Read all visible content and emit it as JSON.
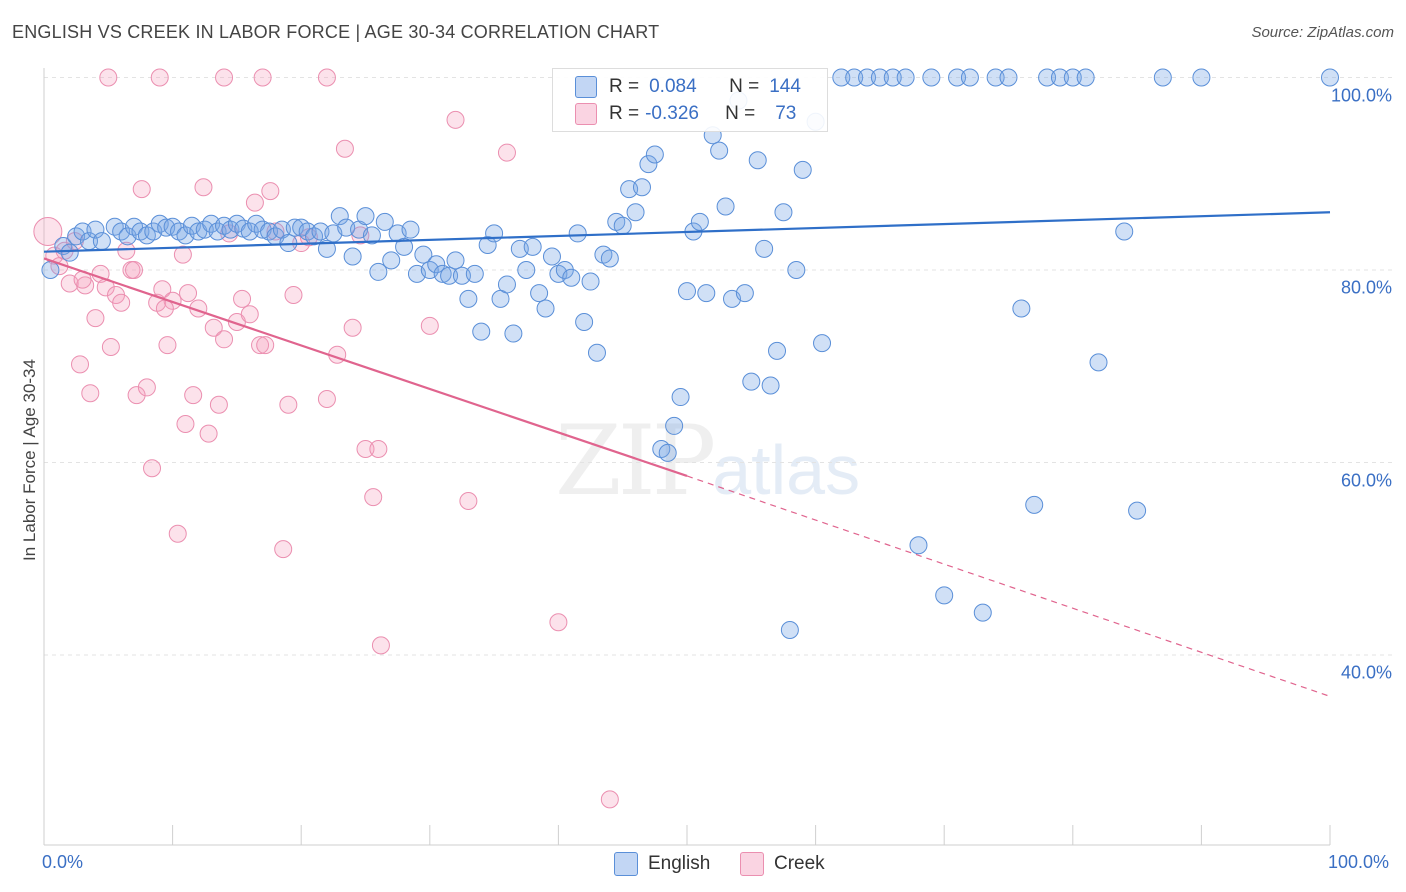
{
  "header": {
    "title": "ENGLISH VS CREEK IN LABOR FORCE | AGE 30-34 CORRELATION CHART",
    "source": "Source: ZipAtlas.com"
  },
  "watermark": {
    "zip": "ZIP",
    "atlas": "atlas"
  },
  "legend": {
    "english": {
      "r_label": "R =",
      "r_value": "0.084",
      "n_label": "N =",
      "n_value": "144",
      "color": "#6fa0e0"
    },
    "creek": {
      "r_label": "R =",
      "r_value": "-0.326",
      "n_label": "N =",
      "n_value": "73",
      "color": "#f095b4"
    }
  },
  "bottom_legend": {
    "english": "English",
    "creek": "Creek"
  },
  "colors": {
    "english_fill": "rgba(120,165,230,0.35)",
    "english_stroke": "#5a8fd8",
    "english_line": "#2f6fc8",
    "creek_fill": "rgba(245,160,190,0.30)",
    "creek_stroke": "#eb8fb0",
    "creek_line": "#e0648e",
    "grid": "#e3e3e3",
    "tick_label": "#3a6fc4"
  },
  "chart_data": {
    "type": "scatter",
    "title": "ENGLISH VS CREEK IN LABOR FORCE | AGE 30-34 CORRELATION CHART",
    "xlabel": "",
    "ylabel": "In Labor Force | Age 30-34",
    "xlim": [
      0,
      100
    ],
    "ylim": [
      20,
      102
    ],
    "x_tick_labels": [
      "0.0%",
      "100.0%"
    ],
    "y_ticks": [
      40,
      60,
      80,
      100
    ],
    "y_tick_labels": [
      "40.0%",
      "60.0%",
      "80.0%",
      "100.0%"
    ],
    "grid": true,
    "series": [
      {
        "name": "English",
        "r": 0.084,
        "n": 144,
        "trend": {
          "x": [
            0,
            100
          ],
          "y": [
            81.9,
            86.0
          ],
          "dashed_from": null
        },
        "points": [
          [
            0.5,
            80.0
          ],
          [
            1.5,
            82.5
          ],
          [
            2.0,
            81.8
          ],
          [
            2.5,
            83.5
          ],
          [
            3.0,
            84.0
          ],
          [
            3.5,
            83.0
          ],
          [
            4.0,
            84.2
          ],
          [
            4.5,
            83.0
          ],
          [
            5.5,
            84.5
          ],
          [
            6.0,
            84.0
          ],
          [
            6.5,
            83.5
          ],
          [
            7.0,
            84.5
          ],
          [
            7.5,
            84.0
          ],
          [
            8.0,
            83.6
          ],
          [
            8.5,
            84.0
          ],
          [
            9.0,
            84.8
          ],
          [
            9.5,
            84.4
          ],
          [
            10.0,
            84.5
          ],
          [
            10.5,
            84.0
          ],
          [
            11.0,
            83.6
          ],
          [
            11.5,
            84.6
          ],
          [
            12.0,
            84.0
          ],
          [
            12.5,
            84.2
          ],
          [
            13.0,
            84.8
          ],
          [
            13.5,
            84.0
          ],
          [
            14.0,
            84.6
          ],
          [
            14.5,
            84.2
          ],
          [
            15.0,
            84.8
          ],
          [
            15.5,
            84.3
          ],
          [
            16.0,
            84.0
          ],
          [
            16.5,
            84.8
          ],
          [
            17.0,
            84.2
          ],
          [
            17.5,
            84.0
          ],
          [
            18.0,
            83.5
          ],
          [
            18.5,
            84.2
          ],
          [
            19.0,
            82.8
          ],
          [
            19.5,
            84.4
          ],
          [
            20.0,
            84.4
          ],
          [
            20.5,
            84.0
          ],
          [
            21.0,
            83.5
          ],
          [
            21.5,
            84.0
          ],
          [
            22.0,
            82.2
          ],
          [
            22.5,
            83.8
          ],
          [
            23.0,
            85.6
          ],
          [
            23.5,
            84.4
          ],
          [
            24.0,
            81.4
          ],
          [
            24.5,
            84.2
          ],
          [
            25.0,
            85.6
          ],
          [
            25.5,
            83.6
          ],
          [
            26.0,
            79.8
          ],
          [
            26.5,
            85.0
          ],
          [
            27.0,
            81.0
          ],
          [
            27.5,
            83.8
          ],
          [
            28.0,
            82.4
          ],
          [
            28.5,
            84.2
          ],
          [
            29.0,
            79.6
          ],
          [
            29.5,
            81.6
          ],
          [
            30.0,
            80.0
          ],
          [
            30.5,
            80.6
          ],
          [
            31.0,
            79.6
          ],
          [
            31.5,
            79.4
          ],
          [
            32.0,
            81.0
          ],
          [
            32.5,
            79.4
          ],
          [
            33.0,
            77.0
          ],
          [
            33.5,
            79.6
          ],
          [
            34.0,
            73.6
          ],
          [
            34.5,
            82.6
          ],
          [
            35.0,
            83.8
          ],
          [
            35.5,
            77.0
          ],
          [
            36.0,
            78.5
          ],
          [
            36.5,
            73.4
          ],
          [
            37.0,
            82.2
          ],
          [
            37.5,
            80.0
          ],
          [
            38.0,
            82.4
          ],
          [
            38.5,
            77.6
          ],
          [
            39.0,
            76.0
          ],
          [
            39.5,
            81.4
          ],
          [
            40.0,
            79.6
          ],
          [
            40.5,
            80.0
          ],
          [
            41.0,
            79.2
          ],
          [
            41.5,
            83.8
          ],
          [
            42.0,
            74.6
          ],
          [
            42.5,
            78.8
          ],
          [
            43.0,
            71.4
          ],
          [
            43.5,
            81.6
          ],
          [
            44.0,
            81.2
          ],
          [
            44.5,
            85.0
          ],
          [
            45.0,
            84.6
          ],
          [
            45.5,
            88.4
          ],
          [
            46.0,
            86.0
          ],
          [
            46.5,
            88.6
          ],
          [
            47.0,
            91.0
          ],
          [
            47.5,
            92.0
          ],
          [
            48.0,
            61.4
          ],
          [
            48.5,
            61.0
          ],
          [
            49.0,
            63.8
          ],
          [
            49.5,
            66.8
          ],
          [
            50.0,
            77.8
          ],
          [
            50.5,
            84.0
          ],
          [
            51.0,
            85.0
          ],
          [
            51.5,
            77.6
          ],
          [
            52.0,
            94.0
          ],
          [
            52.5,
            92.4
          ],
          [
            53.0,
            86.6
          ],
          [
            53.5,
            77.0
          ],
          [
            54.0,
            97.6
          ],
          [
            54.5,
            77.6
          ],
          [
            55.0,
            68.4
          ],
          [
            55.5,
            91.4
          ],
          [
            56.0,
            82.2
          ],
          [
            56.5,
            68.0
          ],
          [
            57.0,
            71.6
          ],
          [
            57.5,
            86.0
          ],
          [
            58.0,
            42.6
          ],
          [
            58.5,
            80.0
          ],
          [
            59.0,
            90.4
          ],
          [
            60.0,
            95.4
          ],
          [
            60.5,
            72.4
          ],
          [
            62.0,
            100.0
          ],
          [
            63.0,
            100.0
          ],
          [
            64.0,
            100.0
          ],
          [
            65.0,
            100.0
          ],
          [
            66.0,
            100.0
          ],
          [
            67.0,
            100.0
          ],
          [
            68.0,
            51.4
          ],
          [
            69.0,
            100.0
          ],
          [
            70.0,
            46.2
          ],
          [
            71.0,
            100.0
          ],
          [
            72.0,
            100.0
          ],
          [
            73.0,
            44.4
          ],
          [
            74.0,
            100.0
          ],
          [
            75.0,
            100.0
          ],
          [
            76.0,
            76.0
          ],
          [
            77.0,
            55.6
          ],
          [
            78.0,
            100.0
          ],
          [
            79.0,
            100.0
          ],
          [
            80.0,
            100.0
          ],
          [
            81.0,
            100.0
          ],
          [
            82.0,
            70.4
          ],
          [
            84.0,
            84.0
          ],
          [
            85.0,
            55.0
          ],
          [
            87.0,
            100.0
          ],
          [
            90.0,
            100.0
          ],
          [
            100.0,
            100.0
          ]
        ]
      },
      {
        "name": "Creek",
        "r": -0.326,
        "n": 73,
        "trend": {
          "x": [
            0,
            50,
            100
          ],
          "y": [
            81.2,
            58.6,
            35.7
          ],
          "dashed_from": 50
        },
        "points": [
          [
            0.3,
            84.0
          ],
          [
            0.8,
            81.5
          ],
          [
            1.2,
            80.4
          ],
          [
            1.6,
            82.0
          ],
          [
            2.0,
            78.6
          ],
          [
            2.4,
            83.0
          ],
          [
            2.8,
            70.2
          ],
          [
            3.2,
            78.4
          ],
          [
            3.6,
            67.2
          ],
          [
            4.0,
            75.0
          ],
          [
            4.4,
            79.6
          ],
          [
            4.8,
            78.2
          ],
          [
            5.2,
            72.0
          ],
          [
            5.6,
            77.4
          ],
          [
            6.0,
            76.6
          ],
          [
            6.4,
            82.0
          ],
          [
            6.8,
            80.0
          ],
          [
            7.2,
            67.0
          ],
          [
            7.6,
            88.4
          ],
          [
            8.0,
            67.8
          ],
          [
            8.4,
            59.4
          ],
          [
            8.8,
            76.6
          ],
          [
            9.2,
            78.0
          ],
          [
            9.6,
            72.2
          ],
          [
            10.0,
            76.8
          ],
          [
            10.4,
            52.6
          ],
          [
            10.8,
            81.6
          ],
          [
            11.2,
            77.6
          ],
          [
            11.6,
            67.0
          ],
          [
            12.0,
            76.0
          ],
          [
            12.4,
            88.6
          ],
          [
            12.8,
            63.0
          ],
          [
            13.2,
            74.0
          ],
          [
            13.6,
            66.0
          ],
          [
            14.0,
            72.8
          ],
          [
            14.4,
            83.8
          ],
          [
            15.0,
            74.6
          ],
          [
            16.0,
            75.4
          ],
          [
            16.4,
            87.0
          ],
          [
            16.8,
            72.2
          ],
          [
            17.2,
            72.2
          ],
          [
            17.6,
            88.2
          ],
          [
            18.0,
            84.0
          ],
          [
            18.6,
            51.0
          ],
          [
            19.0,
            66.0
          ],
          [
            19.4,
            77.4
          ],
          [
            20.0,
            82.8
          ],
          [
            20.6,
            83.4
          ],
          [
            22.0,
            66.6
          ],
          [
            22.8,
            71.2
          ],
          [
            23.4,
            92.6
          ],
          [
            24.0,
            74.0
          ],
          [
            24.6,
            83.6
          ],
          [
            25.0,
            61.4
          ],
          [
            25.6,
            56.4
          ],
          [
            26.2,
            41.0
          ],
          [
            30.0,
            74.2
          ],
          [
            32.0,
            95.6
          ],
          [
            33.0,
            56.0
          ],
          [
            36.0,
            92.2
          ],
          [
            40.0,
            43.4
          ],
          [
            44.0,
            25.0
          ],
          [
            5.0,
            100.0
          ],
          [
            9.0,
            100.0
          ],
          [
            14.0,
            100.0
          ],
          [
            17.0,
            100.0
          ],
          [
            22.0,
            100.0
          ],
          [
            26.0,
            61.4
          ],
          [
            11.0,
            64.0
          ],
          [
            9.4,
            76.0
          ],
          [
            3.0,
            79.0
          ],
          [
            7.0,
            80.0
          ],
          [
            15.4,
            77.0
          ]
        ]
      }
    ]
  }
}
